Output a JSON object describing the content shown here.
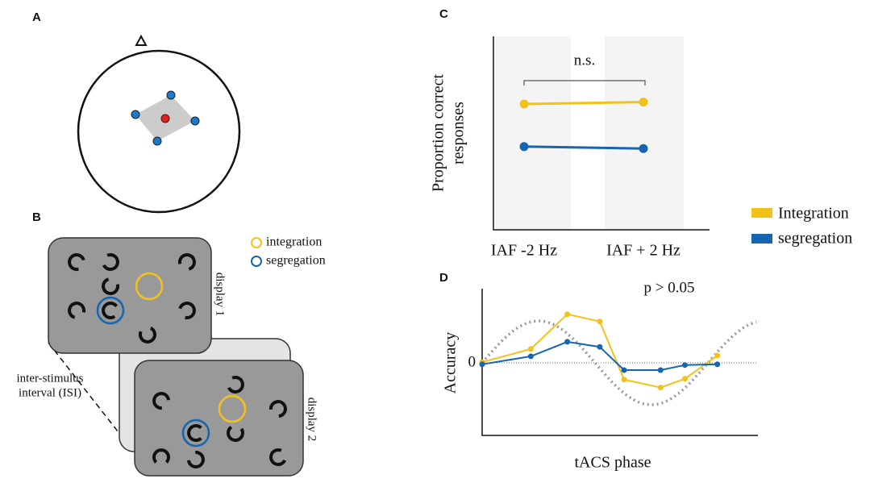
{
  "panels": {
    "a": {
      "label": "A"
    },
    "b": {
      "label": "B",
      "legend": [
        "integration",
        "segregation"
      ],
      "display1": "display 1",
      "display2": "display 2",
      "isi": [
        "inter-stimulus",
        "interval (ISI)"
      ]
    }
  },
  "chart_data": [
    {
      "type": "line",
      "label": "C",
      "ylabel": [
        "Proportion correct",
        "responses"
      ],
      "annotation": "n.s.",
      "categories": [
        "IAF -2 Hz",
        "IAF + 2 Hz"
      ],
      "ylim": [
        0,
        1
      ],
      "series": [
        {
          "name": "Integration",
          "color": "#f2c21b",
          "values": [
            0.65,
            0.66
          ]
        },
        {
          "name": "segregation",
          "color": "#1565b0",
          "values": [
            0.43,
            0.42
          ]
        }
      ]
    },
    {
      "type": "phase",
      "label": "D",
      "title": "p > 0.05",
      "xlabel": "tACS phase",
      "ylabel": "Accuracy",
      "x": [
        0,
        0.6,
        1.05,
        1.45,
        1.75,
        2.2,
        2.5,
        2.9
      ],
      "xlim": [
        0,
        3.4
      ],
      "ylim": [
        -1,
        1
      ],
      "yticks": [
        0
      ],
      "series": [
        {
          "color": "#f2c21b",
          "values": [
            0.01,
            0.19,
            0.67,
            0.57,
            -0.23,
            -0.34,
            -0.22,
            0.1
          ]
        },
        {
          "color": "#1565b0",
          "values": [
            -0.02,
            0.09,
            0.29,
            0.22,
            -0.1,
            -0.1,
            -0.03,
            -0.02
          ]
        }
      ]
    }
  ]
}
